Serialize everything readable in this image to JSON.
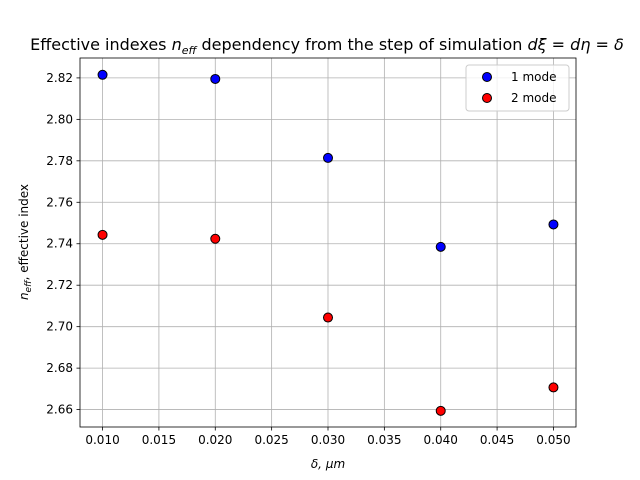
{
  "chart_data": {
    "type": "scatter",
    "title_parts": {
      "prefix": "Effective indexes ",
      "sym_n": "n",
      "sym_sub": "eff",
      "middle": " dependency from the step of simulation ",
      "equation": "dξ = dη = δ"
    },
    "xlabel": "δ, μm",
    "ylabel_parts": {
      "sym": "n",
      "sub": "eff",
      "rest": ", effective index"
    },
    "xlim": [
      0.008,
      0.052
    ],
    "ylim": [
      2.6516,
      2.8296
    ],
    "xticks": [
      "0.010",
      "0.015",
      "0.020",
      "0.025",
      "0.030",
      "0.035",
      "0.040",
      "0.045",
      "0.050"
    ],
    "xtick_values": [
      0.01,
      0.015,
      0.02,
      0.025,
      0.03,
      0.035,
      0.04,
      0.045,
      0.05
    ],
    "yticks": [
      "2.66",
      "2.68",
      "2.70",
      "2.72",
      "2.74",
      "2.76",
      "2.78",
      "2.80",
      "2.82"
    ],
    "ytick_values": [
      2.66,
      2.68,
      2.7,
      2.72,
      2.74,
      2.76,
      2.78,
      2.8,
      2.82
    ],
    "grid": true,
    "legend_position": "top-right",
    "series": [
      {
        "name": "1 mode",
        "color": "#0000ff",
        "x": [
          0.01,
          0.02,
          0.03,
          0.04,
          0.05
        ],
        "y": [
          2.8215,
          2.8195,
          2.7814,
          2.7385,
          2.7493
        ]
      },
      {
        "name": "2 mode",
        "color": "#ff0000",
        "x": [
          0.01,
          0.02,
          0.03,
          0.04,
          0.05
        ],
        "y": [
          2.7443,
          2.7424,
          2.7044,
          2.6594,
          2.6707
        ]
      }
    ]
  }
}
